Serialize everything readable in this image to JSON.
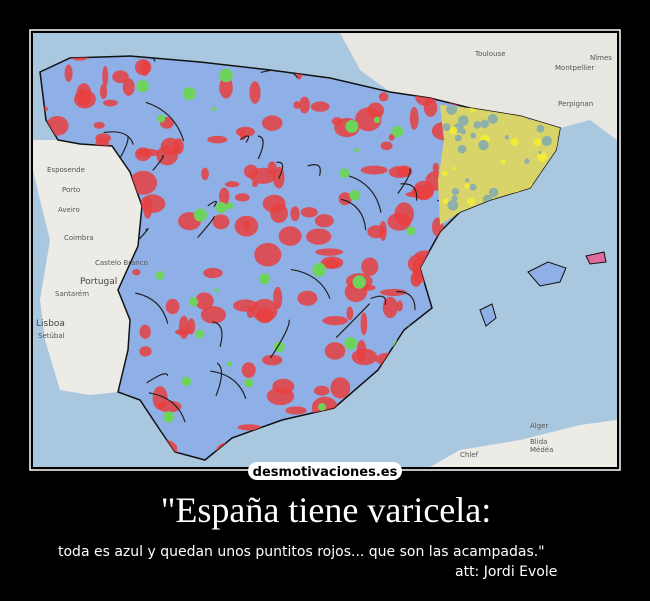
{
  "image": {
    "watermark": "desmotivaciones.es",
    "map_labels": [
      "Toulouse",
      "Montpellier",
      "Nîmes",
      "Perpignan",
      "Esposende",
      "Porto",
      "Aveiro",
      "Coimbra",
      "Castelo Branco",
      "Portugal",
      "Santarém",
      "Lisboa",
      "Setúbal",
      "Alger",
      "Blida",
      "Médéa",
      "Chlef"
    ]
  },
  "caption": {
    "title": "\"España tiene varicela:",
    "text": "toda es azul y quedan unos puntitos rojos... que son las acampadas.\"",
    "attribution": "att: Jordi Evole"
  }
}
